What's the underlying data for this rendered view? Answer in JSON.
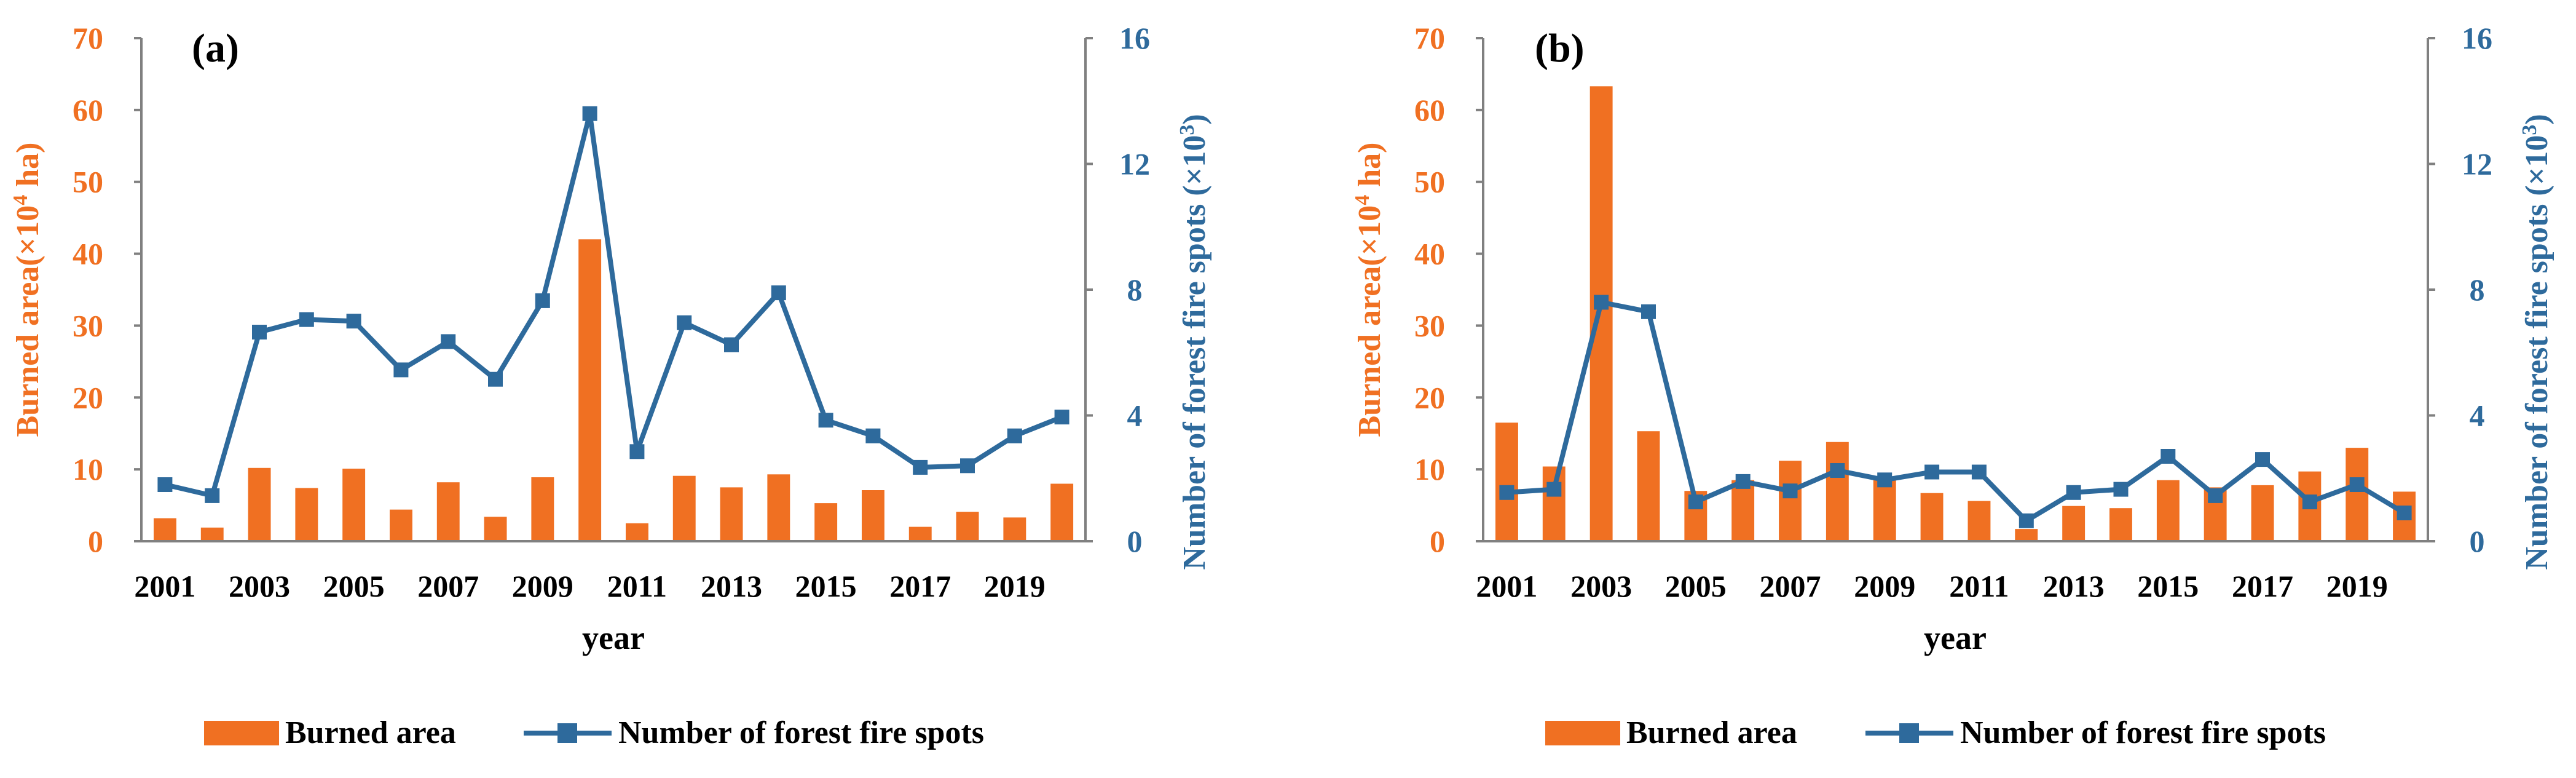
{
  "colors": {
    "burned_area": "#F07022",
    "fire_spots": "#2E6A9C",
    "axis": "#808080",
    "text": "#000000"
  },
  "chart_data": [
    {
      "panel_label": "(a)",
      "type": "bar+line",
      "categories": [
        "2001",
        "2002",
        "2003",
        "2004",
        "2005",
        "2006",
        "2007",
        "2008",
        "2009",
        "2010",
        "2011",
        "2012",
        "2013",
        "2014",
        "2015",
        "2016",
        "2017",
        "2018",
        "2019",
        "2020"
      ],
      "x_tick_labels": [
        "2001",
        "2003",
        "2005",
        "2007",
        "2009",
        "2011",
        "2013",
        "2015",
        "2017",
        "2019"
      ],
      "xlabel": "year",
      "y_left": {
        "label_prefix": "Burned area(×10",
        "label_sup": "4",
        "label_suffix": " ha)",
        "ylim": [
          0,
          70
        ],
        "ticks": [
          0,
          10,
          20,
          30,
          40,
          50,
          60,
          70
        ]
      },
      "y_right": {
        "label_prefix": "Number of forest fire spots (×10",
        "label_sup": "3",
        "label_suffix": ")",
        "ylim": [
          0,
          16
        ],
        "ticks": [
          0,
          4,
          8,
          12,
          16
        ]
      },
      "series": [
        {
          "name": "Burned area",
          "type": "bar",
          "axis": "left",
          "values": [
            3.2,
            1.9,
            10.2,
            7.4,
            10.1,
            4.4,
            8.2,
            3.4,
            8.9,
            42.0,
            2.5,
            9.1,
            7.5,
            9.3,
            5.3,
            7.1,
            2.0,
            4.1,
            3.3,
            8.0
          ]
        },
        {
          "name": "Number of forest fire spots",
          "type": "line",
          "axis": "right",
          "values": [
            1.8,
            1.45,
            6.65,
            7.05,
            7.0,
            5.45,
            6.35,
            5.15,
            7.65,
            13.6,
            2.85,
            6.95,
            6.25,
            7.9,
            3.85,
            3.35,
            2.35,
            2.4,
            3.35,
            3.95
          ]
        }
      ],
      "legend": [
        "Burned area",
        "Number of forest fire spots"
      ],
      "legend_position": "bottom"
    },
    {
      "panel_label": "(b)",
      "type": "bar+line",
      "categories": [
        "2001",
        "2002",
        "2003",
        "2004",
        "2005",
        "2006",
        "2007",
        "2008",
        "2009",
        "2010",
        "2011",
        "2012",
        "2013",
        "2014",
        "2015",
        "2016",
        "2017",
        "2018",
        "2019",
        "2020"
      ],
      "x_tick_labels": [
        "2001",
        "2003",
        "2005",
        "2007",
        "2009",
        "2011",
        "2013",
        "2015",
        "2017",
        "2019"
      ],
      "xlabel": "year",
      "y_left": {
        "label_prefix": "Burned  area(×10",
        "label_sup": "4",
        "label_suffix": " ha)",
        "ylim": [
          0,
          70
        ],
        "ticks": [
          0,
          10,
          20,
          30,
          40,
          50,
          60,
          70
        ]
      },
      "y_right": {
        "label_prefix": "Number of forest fire spots (×10",
        "label_sup": "3",
        "label_suffix": ")",
        "ylim": [
          0,
          16
        ],
        "ticks": [
          0,
          4,
          8,
          12,
          16
        ]
      },
      "series": [
        {
          "name": "Burned area",
          "type": "bar",
          "axis": "left",
          "values": [
            16.5,
            10.4,
            63.3,
            15.3,
            7.0,
            8.5,
            11.2,
            13.8,
            9.0,
            6.7,
            5.6,
            1.7,
            4.9,
            4.6,
            8.5,
            7.5,
            7.8,
            9.7,
            13.0,
            6.9
          ]
        },
        {
          "name": "Number of forest fire spots",
          "type": "line",
          "axis": "right",
          "values": [
            1.55,
            1.65,
            7.6,
            7.3,
            1.25,
            1.9,
            1.6,
            2.25,
            1.95,
            2.2,
            2.2,
            0.65,
            1.55,
            1.65,
            2.7,
            1.45,
            2.6,
            1.25,
            1.8,
            0.9
          ]
        }
      ],
      "legend": [
        "Burned area",
        "Number of forest fire spots"
      ],
      "legend_position": "bottom"
    }
  ]
}
